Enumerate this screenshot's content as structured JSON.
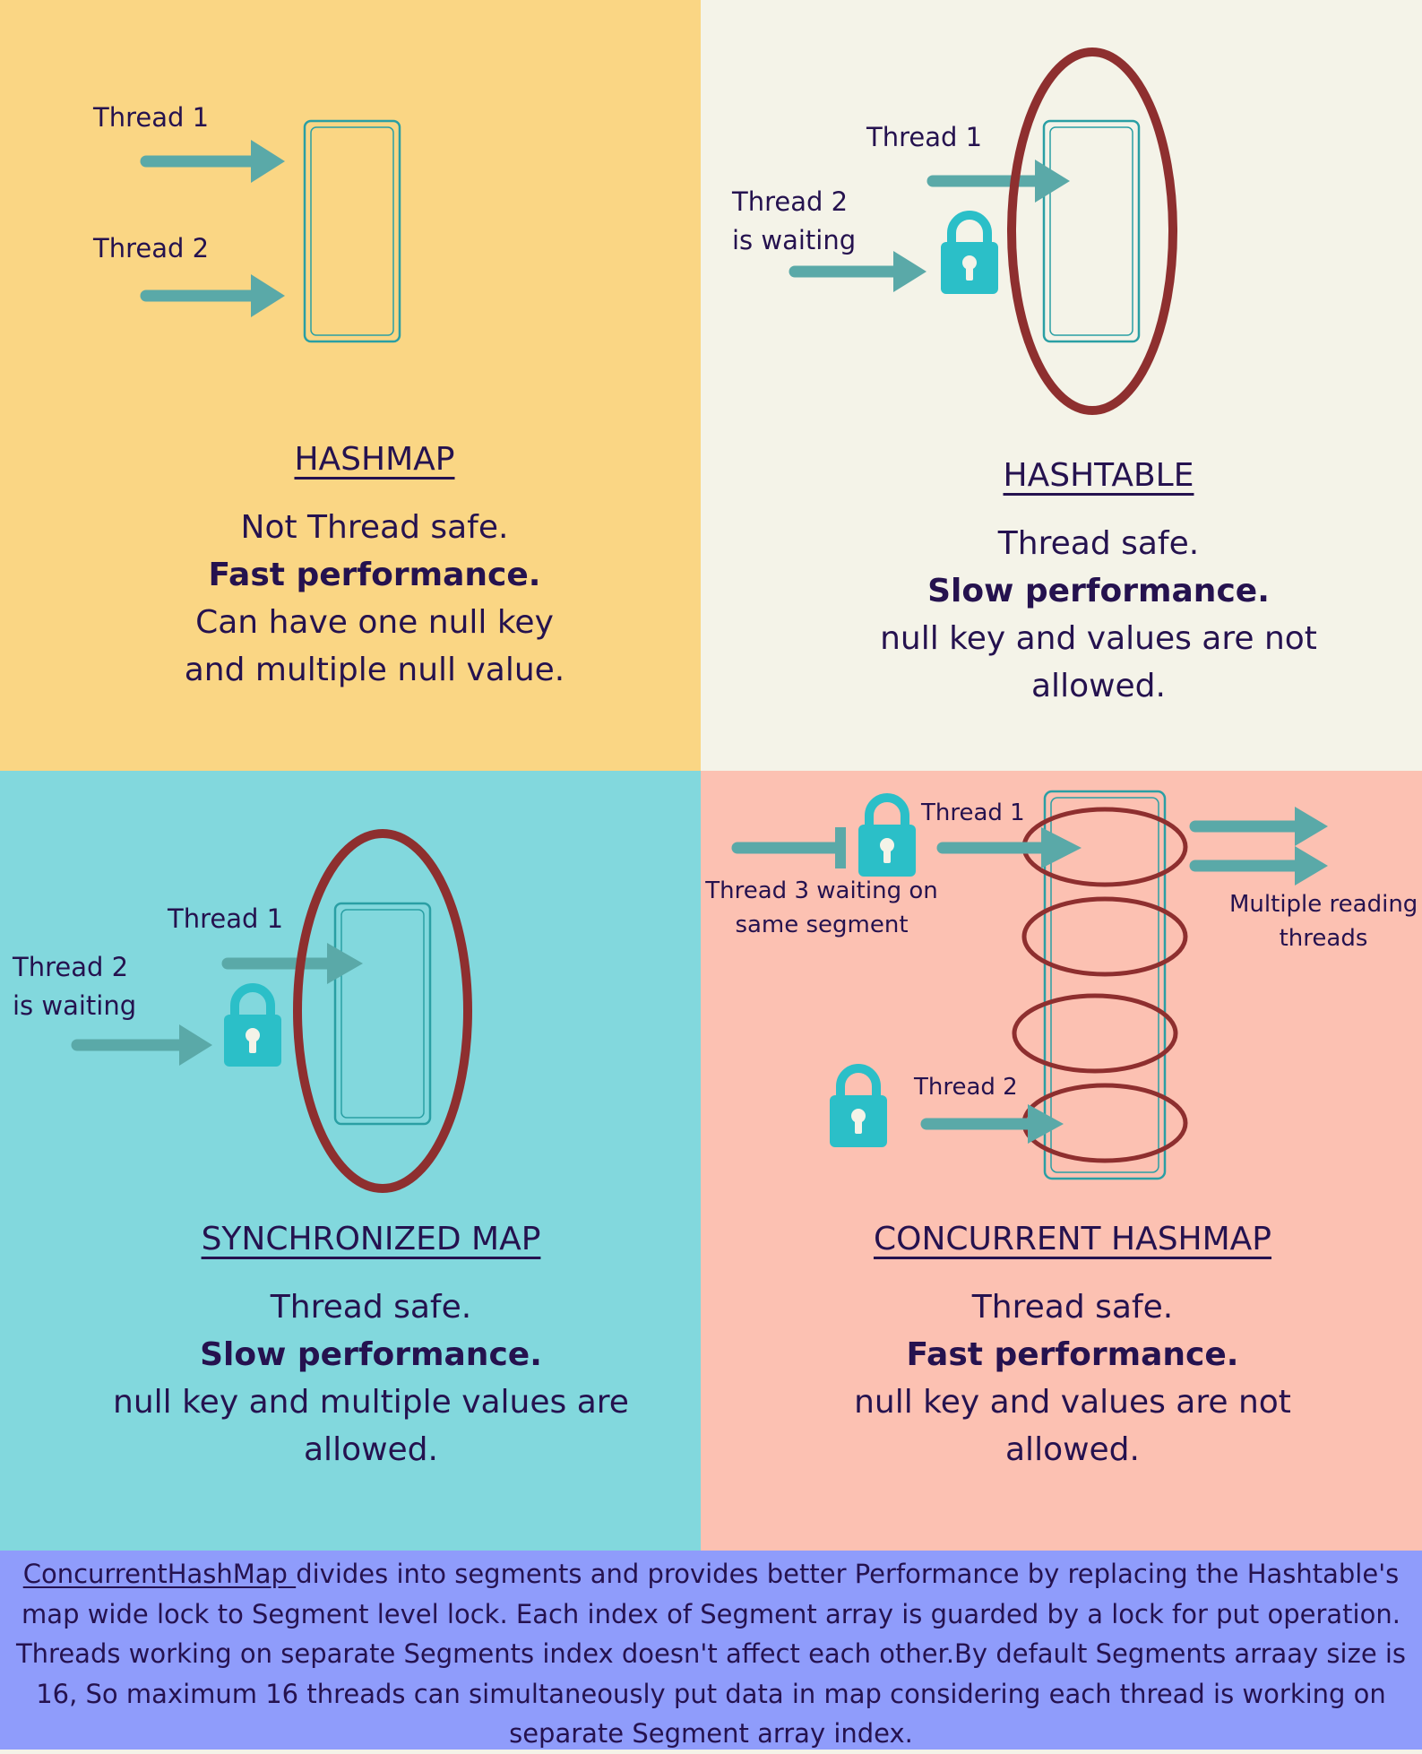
{
  "colors": {
    "hashmap_bg": "#fad684",
    "hashtable_bg": "#f4f3e8",
    "syncmap_bg": "#82d8dd",
    "concurrent_bg": "#fcc1b2",
    "footer_bg": "#8f9cfb",
    "arrow": "#5aa9a8",
    "lock": "#2bbfc8",
    "ellipse": "#8e2f2f",
    "text": "#25124f"
  },
  "hashmap": {
    "thread1": "Thread 1",
    "thread2": "Thread 2",
    "title": "HASHMAP",
    "line1": "Not Thread safe.",
    "line2": "Fast performance.",
    "line3": "Can have one null key",
    "line4": "and multiple null value."
  },
  "hashtable": {
    "thread1": "Thread 1",
    "thread2_a": "Thread 2",
    "thread2_b": "is waiting",
    "title": "HASHTABLE",
    "line1": "Thread safe.",
    "line2": "Slow performance.",
    "line3": "null key and values are not",
    "line4": "allowed."
  },
  "syncmap": {
    "thread1": "Thread 1",
    "thread2_a": "Thread 2",
    "thread2_b": "is waiting",
    "title": "SYNCHRONIZED MAP",
    "line1": "Thread safe.",
    "line2": "Slow performance.",
    "line3": "null key and multiple values are",
    "line4": "allowed."
  },
  "concurrent": {
    "thread1": "Thread 1",
    "thread2": "Thread 2",
    "thread3_a": "Thread 3 waiting on",
    "thread3_b": "same segment",
    "readers_a": "Multiple reading",
    "readers_b": "threads",
    "title": "CONCURRENT HASHMAP",
    "line1": "Thread safe.",
    "line2": "Fast performance.",
    "line3": "null key and values are not",
    "line4": "allowed."
  },
  "footer": {
    "link": "ConcurrentHashMap ",
    "text": "divides into segments and provides better Performance by replacing the Hashtable's map wide lock to Segment level lock. Each index of Segment array is guarded by a lock for put operation. Threads working on separate Segments index doesn't affect each other.By default Segments arraay size is 16, So maximum 16 threads can simultaneously put data in map considering each thread is working on separate Segment array index."
  },
  "icons": [
    "arrow-icon",
    "lock-icon",
    "map-box-icon",
    "lock-ellipse-icon",
    "segment-ellipse-icon"
  ]
}
